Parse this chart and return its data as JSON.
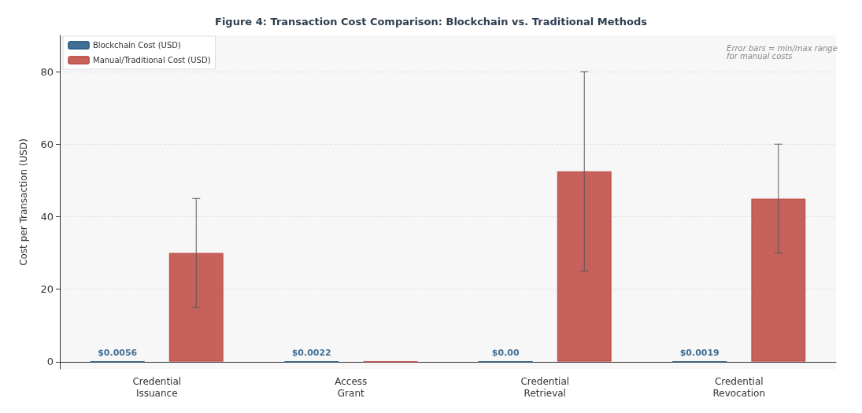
{
  "chart_data": {
    "type": "bar",
    "title": "Figure 4: Transaction Cost Comparison: Blockchain vs. Traditional Methods",
    "ylabel": "Cost per Transaction (USD)",
    "categories": [
      "Credential\nIssuance",
      "Access\nGrant",
      "Credential\nRetrieval",
      "Credential\nRevocation"
    ],
    "series": [
      {
        "name": "Blockchain Cost (USD)",
        "color": "#2e5f8a",
        "values": [
          0.0056,
          0.0022,
          0,
          0.0019
        ],
        "value_labels": [
          "$0.0056",
          "$0.0022",
          "$0.00",
          "$0.0019"
        ]
      },
      {
        "name": "Manual/Traditional Cost (USD)",
        "color": "#c0504a",
        "values": [
          30,
          0,
          52.5,
          45
        ],
        "errors": [
          [
            15,
            45
          ],
          null,
          [
            25,
            80
          ],
          [
            30,
            60
          ]
        ]
      }
    ],
    "ylim": [
      -2,
      90
    ],
    "yticks": [
      0,
      20,
      40,
      60,
      80
    ],
    "grid": "y",
    "legend": "top left",
    "annotations": [
      "Error bars = min/max range for manual costs"
    ]
  }
}
